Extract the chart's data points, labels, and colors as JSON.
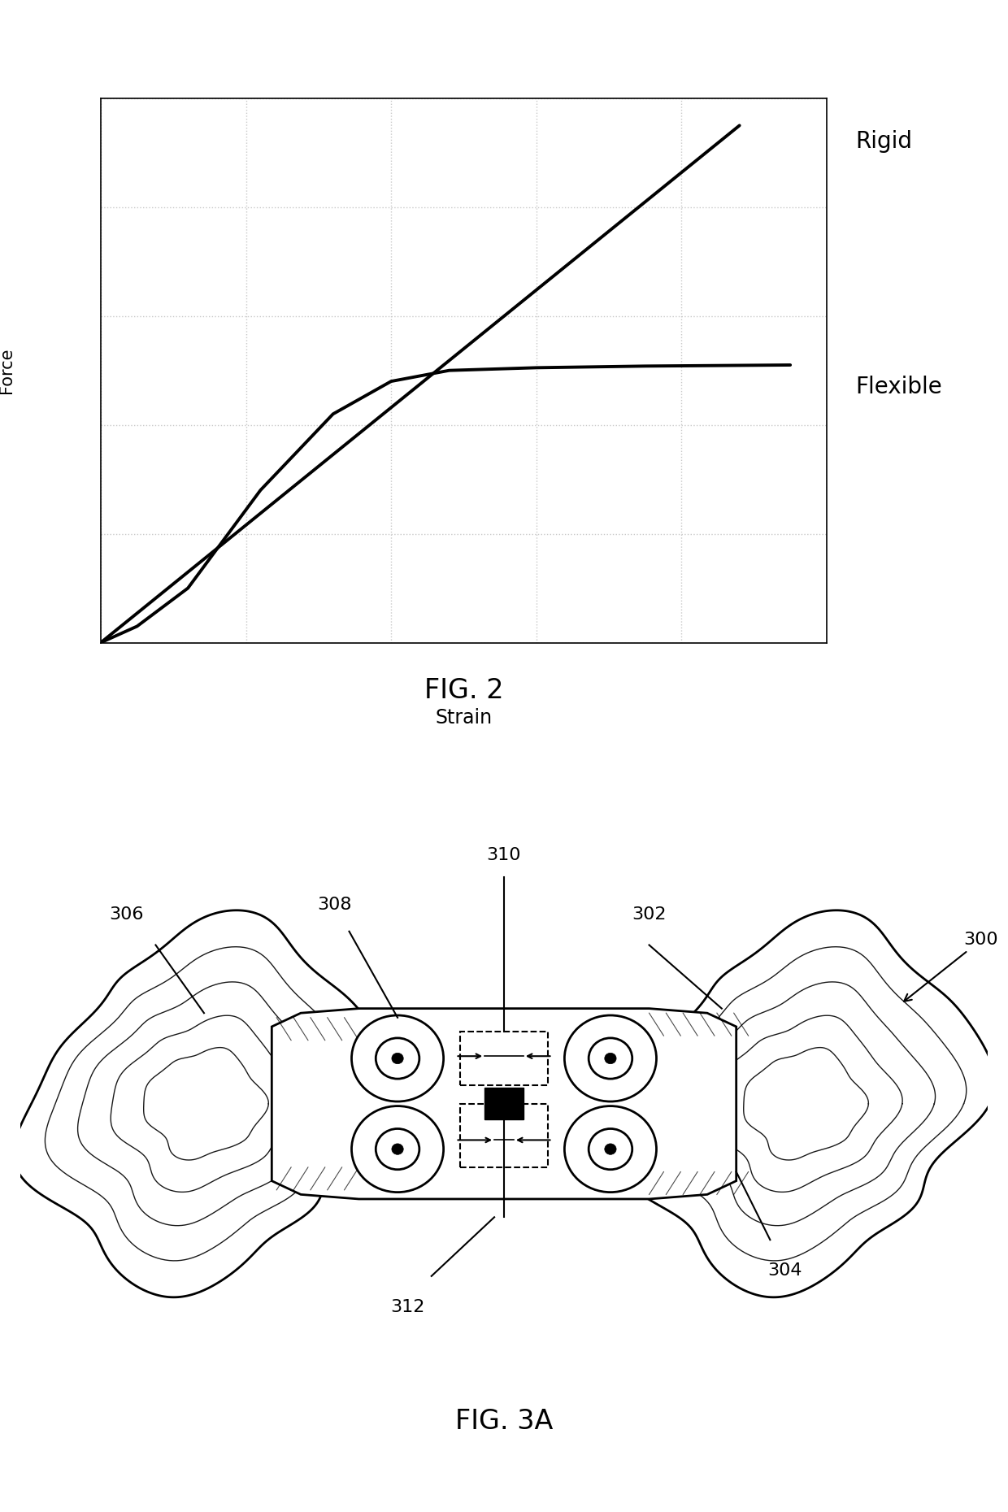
{
  "fig_width": 12.4,
  "fig_height": 18.6,
  "bg_color": "#ffffff",
  "graph2_caption": "FIG. 2",
  "graph_xlabel": "Strain",
  "graph_ylabel": "Force",
  "rigid_label": "Rigid",
  "flexible_label": "Flexible",
  "fig3a_caption": "FIG. 3A",
  "ref_300": "300",
  "ref_302": "302",
  "ref_304": "304",
  "ref_306": "306",
  "ref_308": "308",
  "ref_310": "310",
  "ref_312": "312",
  "line_color": "#000000",
  "grid_color": "#c8c8c8",
  "curve_lw": 2.8,
  "ref_fontsize": 16,
  "caption_fontsize": 24
}
